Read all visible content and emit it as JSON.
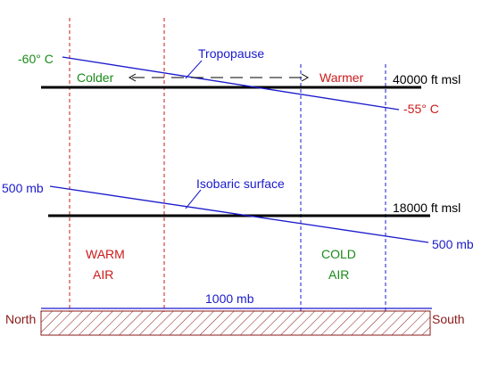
{
  "colors": {
    "blue": "#1a1acc",
    "red": "#cc1a1a",
    "green": "#1a8a1a",
    "maroon": "#8a1a1a",
    "black": "#000000"
  },
  "labels": {
    "temp_left": "-60° C",
    "tropopause": "Tropopause",
    "colder": "Colder",
    "warmer": "Warmer",
    "level_high": "40000 ft msl",
    "temp_right": "-55° C",
    "mb_left": "500 mb",
    "isobaric": "Isobaric surface",
    "level_low": "18000 ft msl",
    "mb_right": "500 mb",
    "warm_1": "WARM",
    "warm_2": "AIR",
    "cold_1": "COLD",
    "cold_2": "AIR",
    "mb_surface": "1000 mb",
    "north": "North",
    "south": "South"
  }
}
